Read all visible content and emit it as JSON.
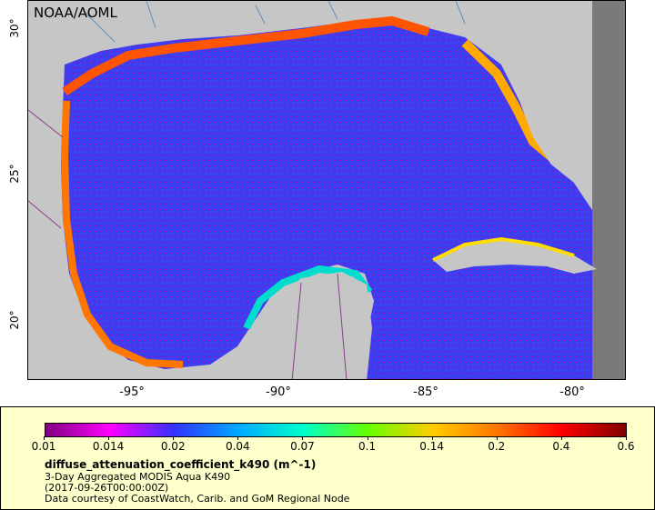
{
  "map": {
    "org_label": "NOAA/AOML",
    "lat_labels": [
      "30°",
      "25°",
      "20°"
    ],
    "lon_labels": [
      "-95°",
      "-90°",
      "-85°",
      "-80°"
    ]
  },
  "legend": {
    "ticks": [
      "0.01",
      "0.014",
      "0.02",
      "0.04",
      "0.07",
      "0.1",
      "0.14",
      "0.2",
      "0.4",
      "0.6"
    ],
    "variable": "diffuse_attenuation_coefficient_k490 (m^-1)",
    "dataset": "3-Day Aggregated MODIS Aqua K490",
    "time": "(2017-09-26T00:00:00Z)",
    "credit": "Data courtesy of CoastWatch, Carib. and GoM Regional Node",
    "colors": [
      "#800080",
      "#ff00ff",
      "#3333ff",
      "#00aaff",
      "#00ffcc",
      "#66ff00",
      "#ffcc00",
      "#ff7700",
      "#ff0000",
      "#800000"
    ]
  }
}
